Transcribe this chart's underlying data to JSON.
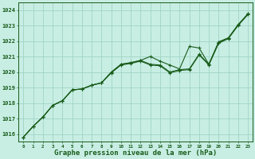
{
  "background_color": "#c8eee4",
  "grid_color": "#a0d4c4",
  "line_color": "#1a5c1a",
  "xlabel": "Graphe pression niveau de la mer (hPa)",
  "xlabel_fontsize": 6.5,
  "ylim": [
    1015.5,
    1024.5
  ],
  "xlim": [
    -0.5,
    23.5
  ],
  "yticks": [
    1016,
    1017,
    1018,
    1019,
    1020,
    1021,
    1022,
    1023,
    1024
  ],
  "xticks": [
    0,
    1,
    2,
    3,
    4,
    5,
    6,
    7,
    8,
    9,
    10,
    11,
    12,
    13,
    14,
    15,
    16,
    17,
    18,
    19,
    20,
    21,
    22,
    23
  ],
  "series1_y": [
    1015.8,
    1016.5,
    1017.1,
    1017.85,
    1018.15,
    1018.85,
    1018.9,
    1019.15,
    1019.3,
    1019.95,
    1020.5,
    1020.6,
    1020.75,
    1020.5,
    1020.45,
    1020.0,
    1020.15,
    1020.2,
    1021.15,
    1020.5,
    1021.9,
    1022.2,
    1023.05,
    1023.75
  ],
  "series2_y": [
    1015.8,
    1016.5,
    1017.1,
    1017.85,
    1018.15,
    1018.85,
    1018.9,
    1019.15,
    1019.3,
    1020.0,
    1020.5,
    1020.6,
    1020.75,
    1021.0,
    1020.7,
    1020.45,
    1020.2,
    1021.65,
    1021.55,
    1020.5,
    1021.95,
    1022.2,
    1023.05,
    1023.75
  ],
  "series3_y": [
    1015.8,
    1016.5,
    1017.1,
    1017.85,
    1018.15,
    1018.85,
    1018.9,
    1019.15,
    1019.3,
    1019.95,
    1020.45,
    1020.55,
    1020.7,
    1020.45,
    1020.4,
    1019.95,
    1020.1,
    1020.15,
    1021.1,
    1020.45,
    1021.85,
    1022.15,
    1023.0,
    1023.7
  ],
  "ytick_fontsize": 5.0,
  "xtick_fontsize": 4.2,
  "marker_size": 3.5,
  "lw": 0.8
}
